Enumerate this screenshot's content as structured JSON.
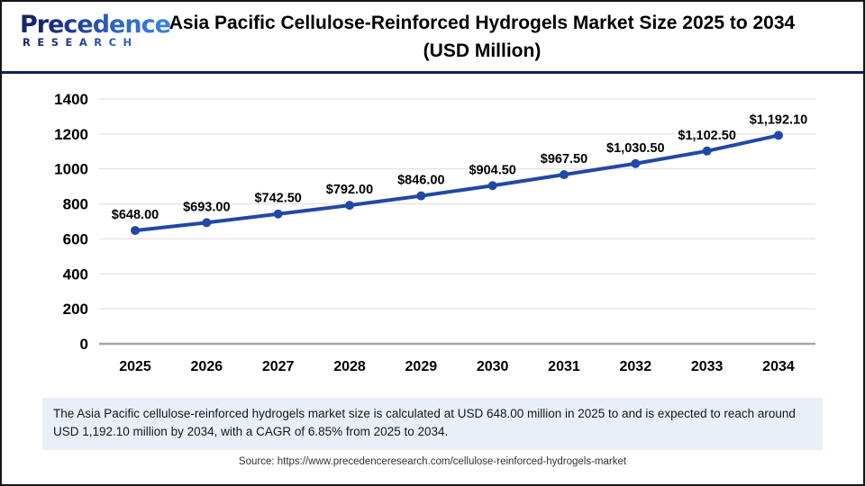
{
  "page": {
    "logo": {
      "brand": "Precedence",
      "sub": "RESEARCH"
    },
    "title": "Asia Pacific Cellulose-Reinforced Hydrogels Market Size 2025 to 2034 (USD Million)",
    "summary": "The Asia Pacific cellulose-reinforced hydrogels market size is calculated at USD 648.00 million in 2025 to and is expected to reach around USD 1,192.10 million by 2034, with a CAGR of 6.85% from 2025 to 2034.",
    "source": "Source: https://www.precedenceresearch.com/cellulose-reinforced-hydrogels-market"
  },
  "colors": {
    "line": "#2148a6",
    "marker": "#2148a6",
    "grid": "#dcdcdc",
    "baseline": "#a6a6a6",
    "header_divider": "#141f5c",
    "summary_bg": "#e9eff9",
    "logo_dark": "#17246b",
    "logo_light": "#3b82d9"
  },
  "chart_data": {
    "type": "line",
    "title": "Asia Pacific Cellulose-Reinforced Hydrogels Market Size 2025 to 2034 (USD Million)",
    "categories": [
      "2025",
      "2026",
      "2027",
      "2028",
      "2029",
      "2030",
      "2031",
      "2032",
      "2033",
      "2034"
    ],
    "values": [
      648.0,
      693.0,
      742.5,
      792.0,
      846.0,
      904.5,
      967.5,
      1030.5,
      1102.5,
      1192.1
    ],
    "point_labels": [
      "$648.00",
      "$693.00",
      "$742.50",
      "$792.00",
      "$846.00",
      "$904.50",
      "$967.50",
      "$1,030.50",
      "$1,102.50",
      "$1,192.10"
    ],
    "xlabel": "",
    "ylabel": "",
    "ylim": [
      0,
      1400
    ],
    "ytick_step": 200,
    "grid": true,
    "legend": false,
    "marker": "circle"
  }
}
